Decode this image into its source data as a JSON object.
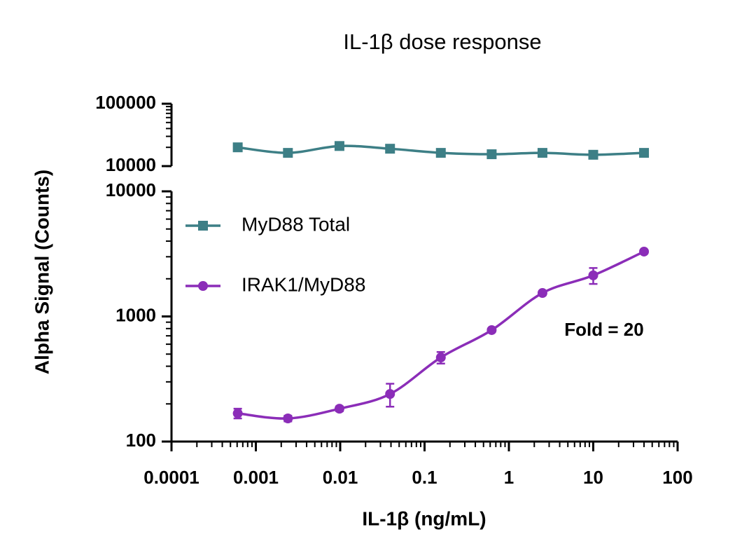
{
  "chart_data": {
    "type": "line",
    "title": "IL-1β dose response",
    "x_label": "IL-1β (ng/mL)",
    "y_label": "Alpha Signal (Counts)",
    "x_scale": "log",
    "y_scale": "log",
    "xlim": [
      0.0001,
      100
    ],
    "xticks": [
      0.0001,
      0.001,
      0.01,
      0.1,
      1,
      10,
      100
    ],
    "ylim": [
      100,
      10000
    ],
    "yticks": [
      100,
      1000,
      10000
    ],
    "y2lim": [
      10000,
      100000
    ],
    "y2ticks": [
      10000,
      100000
    ],
    "legend": "upper left",
    "x": [
      0.00061,
      0.0024,
      0.0098,
      0.039,
      0.156,
      0.625,
      2.5,
      10,
      40
    ],
    "series": [
      {
        "name": "MyD88 Total",
        "color": "#3d7f86",
        "marker": "square",
        "axis": "y2",
        "values": [
          20000,
          16300,
          21000,
          19000,
          16300,
          15500,
          16300,
          15200,
          16300
        ]
      },
      {
        "name": "IRAK1/MyD88",
        "color": "#8b2db8",
        "marker": "circle",
        "values": [
          168,
          153,
          183,
          240,
          470,
          778,
          1540,
          2130,
          3300
        ],
        "errors": [
          15,
          8,
          8,
          50,
          50,
          25,
          60,
          310,
          100
        ]
      }
    ],
    "annotation": "Fold = 20"
  }
}
